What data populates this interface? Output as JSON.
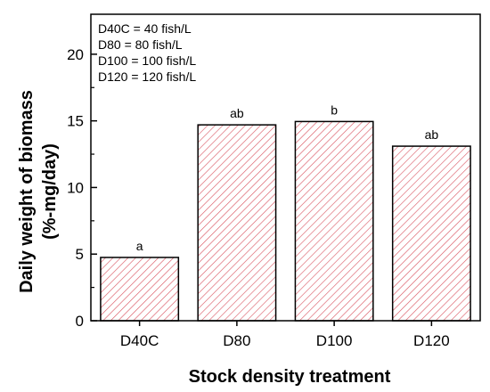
{
  "chart_data": {
    "type": "bar",
    "title": "",
    "xlabel": "Stock density treatment",
    "ylabel_line1": "Daily weight of biomass",
    "ylabel_line2": "(%-mg/day)",
    "categories": [
      "D40C",
      "D80",
      "D100",
      "D120"
    ],
    "values": [
      4.75,
      14.7,
      14.95,
      13.1
    ],
    "significance_labels": [
      "a",
      "ab",
      "b",
      "ab"
    ],
    "ylim": [
      0,
      23
    ],
    "yticks": [
      0,
      5,
      10,
      15,
      20
    ],
    "ytick_labels": [
      "0",
      "5",
      "10",
      "15",
      "20"
    ],
    "grid": false,
    "legend_position": "top-left",
    "legend_lines": [
      "D40C = 40 fish/L",
      "D80 = 80 fish/L",
      "D100 = 100 fish/L",
      "D120 = 120 fish/L"
    ],
    "bar_fill": "hatched diagonal",
    "hatch_color": "#d9535f",
    "bar_edge_color": "#000000"
  }
}
